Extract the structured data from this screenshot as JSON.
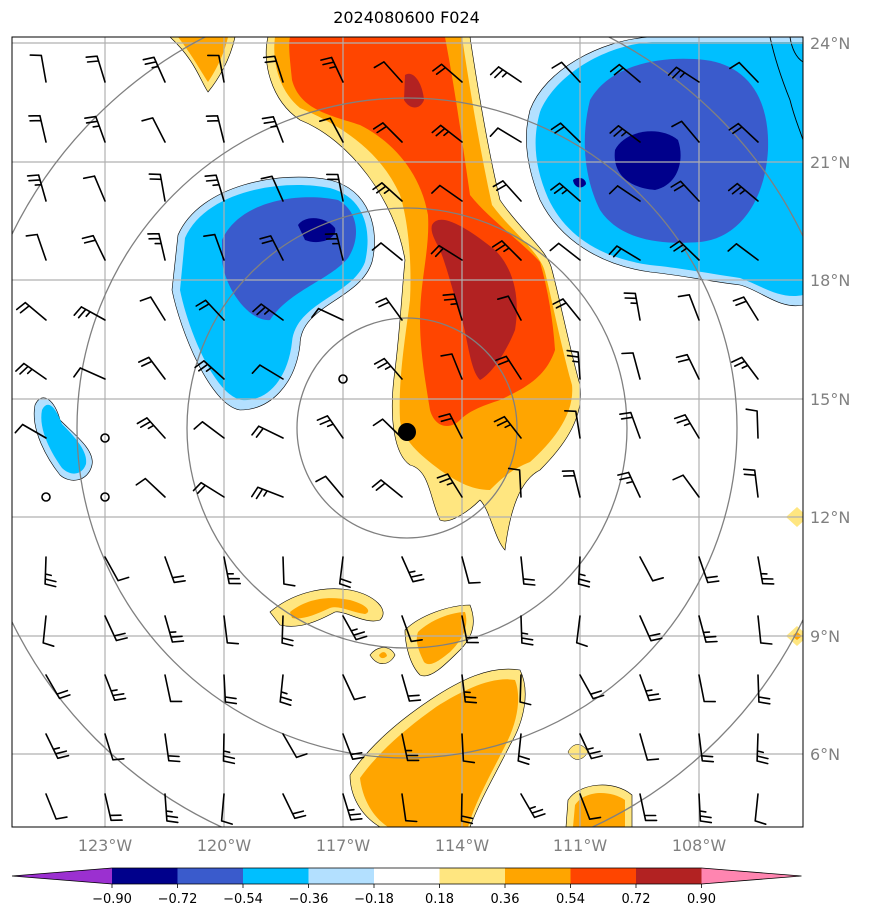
{
  "title": "2024080600 F024",
  "lat_labels": [
    "24°N",
    "21°N",
    "18°N",
    "15°N",
    "12°N",
    "9°N",
    "6°N"
  ],
  "lon_labels": [
    "123°W",
    "120°W",
    "117°W",
    "114°W",
    "111°W",
    "108°W"
  ],
  "colorbar": {
    "ticks": [
      "−0.90",
      "−0.72",
      "−0.54",
      "−0.36",
      "−0.18",
      "0.18",
      "0.36",
      "0.54",
      "0.72",
      "0.90"
    ],
    "colors": [
      "#9b30d0",
      "#00008b",
      "#3a5bcc",
      "#00bfff",
      "#b3e0ff",
      "#ffffff",
      "#ffe680",
      "#ffa500",
      "#ff4500",
      "#b22222",
      "#ff85b0"
    ]
  },
  "colors": {
    "deep_blue": "#00008b",
    "mid_blue": "#3a5bcc",
    "sky_blue": "#00bfff",
    "light_blue": "#b3e0ff",
    "yellow": "#ffe680",
    "orange": "#ffa500",
    "orange_red": "#ff4500",
    "firebrick": "#b22222",
    "ring_gray": "#808080",
    "grid_gray": "#b0b0b0"
  },
  "storm_center_marker": "black-dot"
}
